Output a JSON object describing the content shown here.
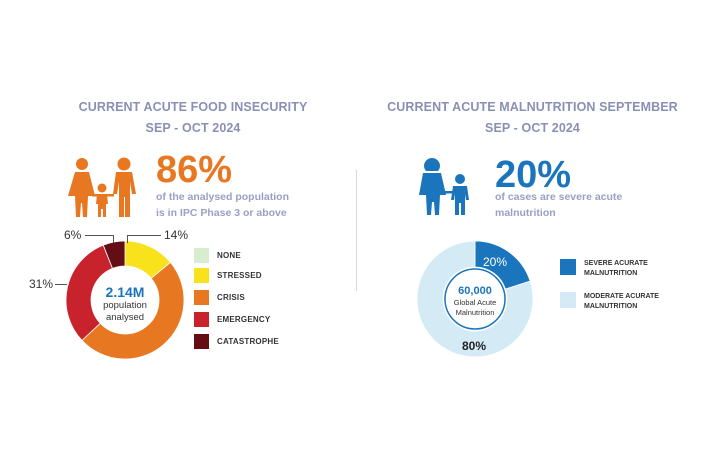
{
  "left_panel": {
    "title_line1": "CURRENT ACUTE FOOD INSECURITY",
    "title_line2": "SEP - OCT 2024",
    "icon": "family-icon",
    "big_stat": "86%",
    "caption_line1": "of the analysed population",
    "caption_line2": "is in IPC Phase 3 or above",
    "center_value": "2.14M",
    "center_label_line1": "population",
    "center_label_line2": "analysed",
    "pct_labels": {
      "catastrophe": "6%",
      "stressed": "14%",
      "emergency": "31%"
    }
  },
  "right_panel": {
    "title_line1": "CURRENT ACUTE MALNUTRITION SEPTEMBER",
    "title_line2": "SEP - OCT 2024",
    "icon": "mother-child-icon",
    "big_stat": "20%",
    "caption_line1": "of cases are severe acute",
    "caption_line2": "malnutrition",
    "center_value": "60,000",
    "center_label_line1": "Global Acute",
    "center_label_line2": "Malnutrition",
    "pct_labels": {
      "severe": "20%",
      "moderate": "80%"
    }
  },
  "colors": {
    "title": "#8b8fb5",
    "orange": "#e87722",
    "blue": "#1b75bc",
    "light_blue": "#d4ebf6",
    "none": "#d8ecd0",
    "stressed": "#f7e21b",
    "crisis": "#e87722",
    "emergency": "#c8232c",
    "catastrophe": "#640d14"
  },
  "chart_data": [
    {
      "type": "pie",
      "variant": "donut",
      "title": "CURRENT ACUTE FOOD INSECURITY",
      "subtitle": "SEP - OCT 2024",
      "categories": [
        "NONE",
        "STRESSED",
        "CRISIS",
        "EMERGENCY",
        "CATASTROPHE"
      ],
      "values": [
        0,
        14,
        49,
        31,
        6
      ],
      "colors": [
        "#d8ecd0",
        "#f7e21b",
        "#e87722",
        "#c8232c",
        "#640d14"
      ],
      "legend": "right",
      "center_text": "2.14M population analysed"
    },
    {
      "type": "pie",
      "variant": "donut",
      "title": "CURRENT ACUTE MALNUTRITION SEPTEMBER",
      "subtitle": "SEP - OCT 2024",
      "categories": [
        "SEVERE ACURATE MALNUTRITION",
        "MODERATE ACURATE MALNUTRITION"
      ],
      "values": [
        20,
        80
      ],
      "colors": [
        "#1b75bc",
        "#d4ebf6"
      ],
      "legend": "right",
      "center_text": "60,000 Global Acute Malnutrition"
    }
  ]
}
